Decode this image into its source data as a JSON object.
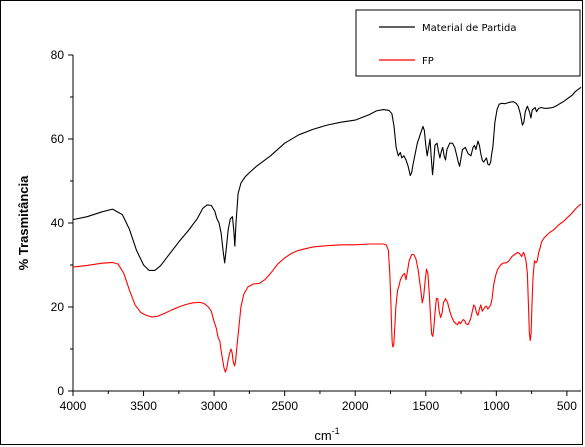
{
  "chart_data": {
    "type": "line",
    "title": "",
    "xlabel": "cm",
    "xlabel_sup": "-1",
    "ylabel": "% Trasmitância",
    "xlim": [
      4000,
      400
    ],
    "ylim": [
      0,
      80
    ],
    "x_reversed": true,
    "xticks": [
      4000,
      3500,
      3000,
      2500,
      2000,
      1500,
      1000,
      500
    ],
    "yticks": [
      0,
      20,
      40,
      60,
      80
    ],
    "grid": false,
    "legend_position": "top-right",
    "series": [
      {
        "name": "Material de Partida",
        "color": "#000000",
        "points": [
          [
            4000,
            40.8
          ],
          [
            3900,
            41.5
          ],
          [
            3800,
            42.6
          ],
          [
            3720,
            43.3
          ],
          [
            3650,
            42.0
          ],
          [
            3600,
            38.5
          ],
          [
            3550,
            33.5
          ],
          [
            3500,
            30.0
          ],
          [
            3460,
            28.7
          ],
          [
            3420,
            28.7
          ],
          [
            3380,
            29.8
          ],
          [
            3330,
            32.0
          ],
          [
            3250,
            35.5
          ],
          [
            3180,
            38.3
          ],
          [
            3120,
            41.0
          ],
          [
            3080,
            43.5
          ],
          [
            3050,
            44.3
          ],
          [
            3020,
            44.2
          ],
          [
            2995,
            42.8
          ],
          [
            2980,
            41.0
          ],
          [
            2965,
            40.0
          ],
          [
            2950,
            37.5
          ],
          [
            2935,
            33.0
          ],
          [
            2925,
            30.5
          ],
          [
            2915,
            33.5
          ],
          [
            2900,
            38.5
          ],
          [
            2885,
            41.0
          ],
          [
            2870,
            41.5
          ],
          [
            2860,
            38.0
          ],
          [
            2853,
            34.5
          ],
          [
            2845,
            40.0
          ],
          [
            2830,
            47.0
          ],
          [
            2810,
            49.5
          ],
          [
            2780,
            51.0
          ],
          [
            2750,
            52.0
          ],
          [
            2700,
            53.5
          ],
          [
            2600,
            56.0
          ],
          [
            2500,
            59.0
          ],
          [
            2400,
            61.0
          ],
          [
            2300,
            62.3
          ],
          [
            2200,
            63.3
          ],
          [
            2100,
            64.0
          ],
          [
            2000,
            64.5
          ],
          [
            1900,
            65.8
          ],
          [
            1850,
            66.7
          ],
          [
            1800,
            67.0
          ],
          [
            1760,
            66.8
          ],
          [
            1740,
            66.0
          ],
          [
            1725,
            63.0
          ],
          [
            1710,
            58.0
          ],
          [
            1695,
            56.0
          ],
          [
            1680,
            56.8
          ],
          [
            1670,
            55.5
          ],
          [
            1655,
            56.0
          ],
          [
            1640,
            55.0
          ],
          [
            1625,
            53.5
          ],
          [
            1610,
            51.3
          ],
          [
            1600,
            52.0
          ],
          [
            1590,
            54.0
          ],
          [
            1575,
            56.5
          ],
          [
            1560,
            59.0
          ],
          [
            1540,
            61.0
          ],
          [
            1520,
            63.0
          ],
          [
            1510,
            62.0
          ],
          [
            1500,
            58.5
          ],
          [
            1490,
            56.0
          ],
          [
            1480,
            58.0
          ],
          [
            1470,
            60.0
          ],
          [
            1460,
            55.0
          ],
          [
            1452,
            51.5
          ],
          [
            1445,
            54.0
          ],
          [
            1435,
            58.5
          ],
          [
            1420,
            59.0
          ],
          [
            1410,
            57.0
          ],
          [
            1400,
            55.5
          ],
          [
            1390,
            57.0
          ],
          [
            1380,
            58.0
          ],
          [
            1370,
            56.0
          ],
          [
            1360,
            55.0
          ],
          [
            1350,
            57.5
          ],
          [
            1330,
            59.0
          ],
          [
            1310,
            59.0
          ],
          [
            1295,
            58.0
          ],
          [
            1280,
            56.0
          ],
          [
            1270,
            54.5
          ],
          [
            1260,
            53.5
          ],
          [
            1250,
            55.5
          ],
          [
            1240,
            57.5
          ],
          [
            1220,
            58.0
          ],
          [
            1200,
            56.5
          ],
          [
            1180,
            56.0
          ],
          [
            1165,
            58.0
          ],
          [
            1155,
            58.5
          ],
          [
            1145,
            57.5
          ],
          [
            1130,
            59.5
          ],
          [
            1120,
            58.5
          ],
          [
            1110,
            56.5
          ],
          [
            1100,
            55.0
          ],
          [
            1090,
            54.5
          ],
          [
            1080,
            55.0
          ],
          [
            1070,
            55.5
          ],
          [
            1060,
            54.0
          ],
          [
            1050,
            53.8
          ],
          [
            1040,
            54.5
          ],
          [
            1035,
            56.0
          ],
          [
            1025,
            58.0
          ],
          [
            1010,
            64.0
          ],
          [
            995,
            67.0
          ],
          [
            980,
            68.3
          ],
          [
            960,
            68.5
          ],
          [
            940,
            68.4
          ],
          [
            920,
            68.6
          ],
          [
            900,
            68.8
          ],
          [
            880,
            68.9
          ],
          [
            860,
            68.5
          ],
          [
            845,
            67.8
          ],
          [
            830,
            66.0
          ],
          [
            815,
            63.3
          ],
          [
            805,
            64.0
          ],
          [
            795,
            66.5
          ],
          [
            780,
            67.8
          ],
          [
            765,
            66.5
          ],
          [
            755,
            65.0
          ],
          [
            745,
            67.0
          ],
          [
            735,
            67.2
          ],
          [
            725,
            67.5
          ],
          [
            715,
            66.5
          ],
          [
            700,
            67.3
          ],
          [
            680,
            67.5
          ],
          [
            660,
            67.3
          ],
          [
            640,
            67.3
          ],
          [
            620,
            67.4
          ],
          [
            600,
            67.5
          ],
          [
            580,
            67.8
          ],
          [
            560,
            68.2
          ],
          [
            540,
            68.6
          ],
          [
            520,
            69.0
          ],
          [
            500,
            69.5
          ],
          [
            480,
            70.0
          ],
          [
            460,
            70.5
          ],
          [
            440,
            71.3
          ],
          [
            420,
            71.8
          ],
          [
            400,
            72.3
          ]
        ]
      },
      {
        "name": "FP",
        "color": "#ff0000",
        "points": [
          [
            4000,
            29.5
          ],
          [
            3900,
            29.9
          ],
          [
            3800,
            30.4
          ],
          [
            3720,
            30.6
          ],
          [
            3680,
            30.2
          ],
          [
            3640,
            28.0
          ],
          [
            3600,
            24.0
          ],
          [
            3560,
            20.5
          ],
          [
            3520,
            18.7
          ],
          [
            3480,
            18.0
          ],
          [
            3440,
            17.6
          ],
          [
            3400,
            17.8
          ],
          [
            3350,
            18.5
          ],
          [
            3300,
            19.3
          ],
          [
            3250,
            20.0
          ],
          [
            3200,
            20.6
          ],
          [
            3150,
            21.0
          ],
          [
            3100,
            21.1
          ],
          [
            3070,
            20.8
          ],
          [
            3040,
            20.0
          ],
          [
            3020,
            19.0
          ],
          [
            3000,
            16.5
          ],
          [
            2985,
            15.0
          ],
          [
            2970,
            12.5
          ],
          [
            2960,
            12.0
          ],
          [
            2950,
            9.5
          ],
          [
            2940,
            7.5
          ],
          [
            2930,
            5.5
          ],
          [
            2920,
            4.5
          ],
          [
            2910,
            5.5
          ],
          [
            2900,
            7.5
          ],
          [
            2890,
            9.0
          ],
          [
            2880,
            10.0
          ],
          [
            2872,
            9.0
          ],
          [
            2865,
            7.0
          ],
          [
            2855,
            6.0
          ],
          [
            2848,
            7.0
          ],
          [
            2840,
            10.0
          ],
          [
            2825,
            15.0
          ],
          [
            2810,
            20.0
          ],
          [
            2790,
            23.0
          ],
          [
            2760,
            24.8
          ],
          [
            2720,
            25.5
          ],
          [
            2680,
            25.6
          ],
          [
            2640,
            26.5
          ],
          [
            2600,
            28.0
          ],
          [
            2550,
            30.2
          ],
          [
            2500,
            31.7
          ],
          [
            2450,
            32.8
          ],
          [
            2400,
            33.5
          ],
          [
            2300,
            34.3
          ],
          [
            2200,
            34.6
          ],
          [
            2100,
            34.8
          ],
          [
            2000,
            34.8
          ],
          [
            1900,
            35.0
          ],
          [
            1830,
            35.0
          ],
          [
            1800,
            35.0
          ],
          [
            1780,
            34.8
          ],
          [
            1765,
            33.5
          ],
          [
            1755,
            28.0
          ],
          [
            1748,
            22.0
          ],
          [
            1742,
            15.0
          ],
          [
            1738,
            11.5
          ],
          [
            1733,
            10.5
          ],
          [
            1727,
            11.0
          ],
          [
            1720,
            15.0
          ],
          [
            1712,
            20.0
          ],
          [
            1700,
            24.0
          ],
          [
            1690,
            25.0
          ],
          [
            1680,
            26.5
          ],
          [
            1665,
            27.5
          ],
          [
            1650,
            28.0
          ],
          [
            1640,
            26.5
          ],
          [
            1630,
            28.5
          ],
          [
            1618,
            31.0
          ],
          [
            1600,
            32.5
          ],
          [
            1585,
            32.5
          ],
          [
            1570,
            31.5
          ],
          [
            1555,
            29.0
          ],
          [
            1545,
            26.5
          ],
          [
            1535,
            24.0
          ],
          [
            1525,
            21.0
          ],
          [
            1515,
            22.5
          ],
          [
            1505,
            26.0
          ],
          [
            1495,
            29.0
          ],
          [
            1485,
            28.0
          ],
          [
            1475,
            23.0
          ],
          [
            1465,
            17.0
          ],
          [
            1458,
            13.5
          ],
          [
            1450,
            13.0
          ],
          [
            1443,
            15.0
          ],
          [
            1435,
            18.5
          ],
          [
            1425,
            22.0
          ],
          [
            1415,
            22.0
          ],
          [
            1405,
            19.0
          ],
          [
            1395,
            17.5
          ],
          [
            1385,
            18.5
          ],
          [
            1375,
            21.0
          ],
          [
            1360,
            22.0
          ],
          [
            1345,
            21.0
          ],
          [
            1330,
            19.0
          ],
          [
            1315,
            17.5
          ],
          [
            1300,
            16.5
          ],
          [
            1285,
            16.0
          ],
          [
            1275,
            15.8
          ],
          [
            1265,
            16.5
          ],
          [
            1255,
            16.0
          ],
          [
            1245,
            16.5
          ],
          [
            1235,
            17.0
          ],
          [
            1225,
            16.8
          ],
          [
            1215,
            16.0
          ],
          [
            1200,
            15.8
          ],
          [
            1190,
            16.5
          ],
          [
            1180,
            17.5
          ],
          [
            1170,
            19.0
          ],
          [
            1160,
            20.5
          ],
          [
            1150,
            20.0
          ],
          [
            1140,
            18.5
          ],
          [
            1130,
            18.0
          ],
          [
            1120,
            19.5
          ],
          [
            1110,
            20.5
          ],
          [
            1100,
            19.0
          ],
          [
            1090,
            19.5
          ],
          [
            1080,
            20.0
          ],
          [
            1070,
            20.2
          ],
          [
            1060,
            19.5
          ],
          [
            1050,
            20.0
          ],
          [
            1040,
            20.5
          ],
          [
            1030,
            22.0
          ],
          [
            1020,
            25.0
          ],
          [
            1005,
            27.5
          ],
          [
            990,
            29.0
          ],
          [
            970,
            30.0
          ],
          [
            950,
            30.5
          ],
          [
            930,
            30.5
          ],
          [
            910,
            31.0
          ],
          [
            890,
            32.0
          ],
          [
            870,
            32.5
          ],
          [
            850,
            33.0
          ],
          [
            835,
            32.7
          ],
          [
            820,
            32.0
          ],
          [
            808,
            33.0
          ],
          [
            800,
            32.5
          ],
          [
            790,
            31.0
          ],
          [
            780,
            28.0
          ],
          [
            772,
            20.0
          ],
          [
            766,
            14.0
          ],
          [
            760,
            12.0
          ],
          [
            754,
            13.5
          ],
          [
            748,
            20.0
          ],
          [
            740,
            27.0
          ],
          [
            730,
            31.0
          ],
          [
            720,
            30.5
          ],
          [
            710,
            31.0
          ],
          [
            700,
            33.0
          ],
          [
            690,
            34.0
          ],
          [
            680,
            35.5
          ],
          [
            660,
            36.5
          ],
          [
            640,
            37.2
          ],
          [
            620,
            37.8
          ],
          [
            600,
            38.2
          ],
          [
            580,
            38.8
          ],
          [
            560,
            39.5
          ],
          [
            540,
            40.0
          ],
          [
            520,
            40.5
          ],
          [
            500,
            41.2
          ],
          [
            480,
            41.8
          ],
          [
            460,
            42.5
          ],
          [
            440,
            43.3
          ],
          [
            420,
            44.0
          ],
          [
            400,
            44.5
          ]
        ]
      }
    ]
  }
}
